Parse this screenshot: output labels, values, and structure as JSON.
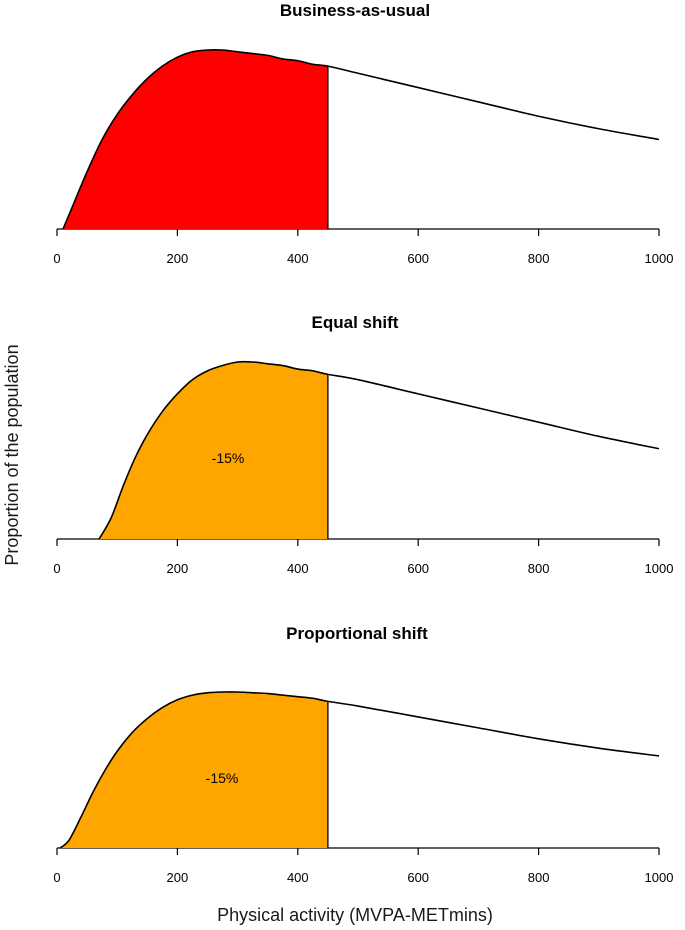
{
  "chart_data": {
    "type": "area",
    "xlabel": "Physical activity (MVPA-METmins)",
    "ylabel": "Proportion of the population",
    "xlim": [
      0,
      1000
    ],
    "x_ticks": [
      "0",
      "200",
      "400",
      "600",
      "800",
      "1000"
    ],
    "shade_upper": 450,
    "grid": false,
    "panels": [
      {
        "title": "Business-as-usual",
        "fill_color": "#ff0000",
        "annotation": "",
        "x": [
          10,
          25,
          50,
          75,
          100,
          125,
          150,
          175,
          200,
          225,
          250,
          275,
          300,
          325,
          350,
          375,
          400,
          425,
          450,
          500,
          600,
          700,
          800,
          900,
          1000
        ],
        "y": [
          0.0,
          0.12,
          0.32,
          0.5,
          0.64,
          0.75,
          0.84,
          0.91,
          0.96,
          0.99,
          1.0,
          1.0,
          0.99,
          0.98,
          0.97,
          0.95,
          0.94,
          0.92,
          0.91,
          0.87,
          0.79,
          0.71,
          0.63,
          0.56,
          0.5
        ]
      },
      {
        "title": "Equal shift",
        "fill_color": "#ffa500",
        "annotation": "-15%",
        "x": [
          70,
          90,
          110,
          130,
          150,
          175,
          200,
          225,
          250,
          275,
          300,
          325,
          350,
          375,
          400,
          425,
          450,
          500,
          600,
          700,
          800,
          900,
          1000
        ],
        "y": [
          0.0,
          0.12,
          0.3,
          0.46,
          0.59,
          0.72,
          0.82,
          0.9,
          0.95,
          0.98,
          1.0,
          1.0,
          0.99,
          0.98,
          0.96,
          0.95,
          0.93,
          0.9,
          0.82,
          0.74,
          0.66,
          0.58,
          0.51
        ]
      },
      {
        "title": "Proportional shift",
        "fill_color": "#ffa500",
        "annotation": "-15%",
        "x": [
          5,
          20,
          40,
          60,
          80,
          100,
          125,
          150,
          175,
          200,
          225,
          250,
          275,
          300,
          325,
          350,
          375,
          400,
          425,
          450,
          500,
          600,
          700,
          800,
          900,
          1000
        ],
        "y": [
          0.0,
          0.05,
          0.2,
          0.36,
          0.5,
          0.62,
          0.74,
          0.83,
          0.9,
          0.95,
          0.98,
          0.995,
          1.0,
          1.0,
          0.995,
          0.99,
          0.98,
          0.97,
          0.96,
          0.94,
          0.91,
          0.84,
          0.77,
          0.7,
          0.64,
          0.59
        ]
      }
    ]
  }
}
